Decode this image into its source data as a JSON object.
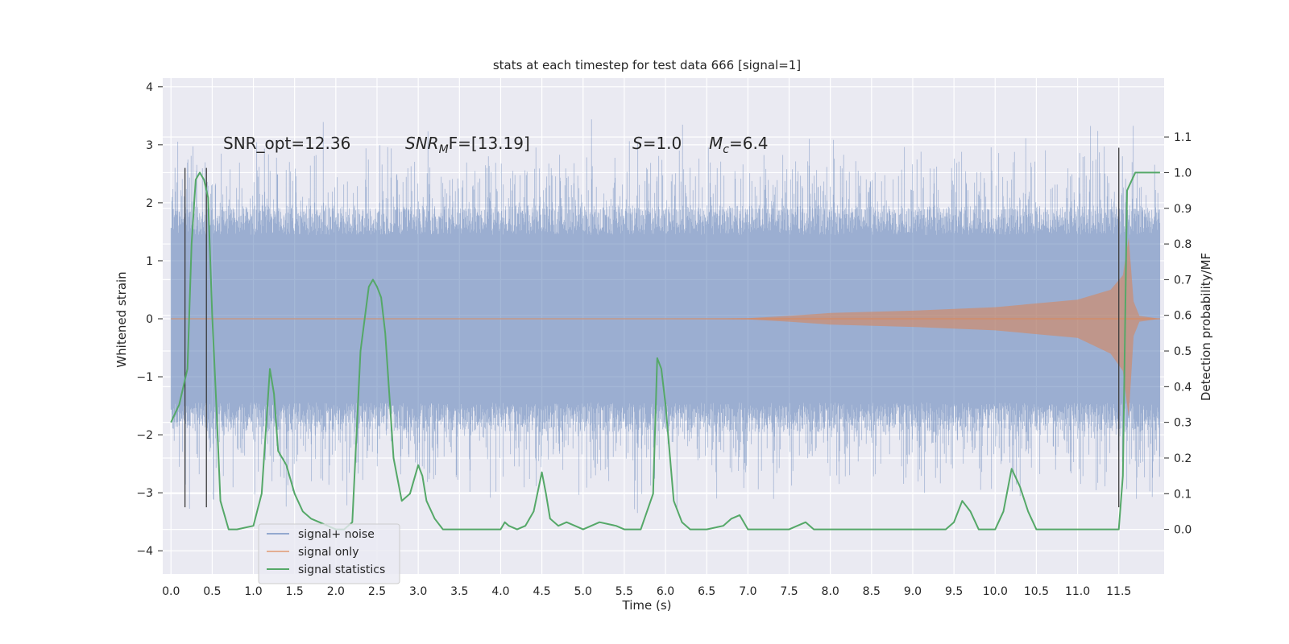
{
  "chart_data": {
    "type": "line",
    "title": "stats at each timestep for test data 666 [signal=1]",
    "xlabel": "Time (s)",
    "ylabel": "Whitened strain",
    "y2label": "Detection probability/MF",
    "xlim": [
      -0.1,
      12.05
    ],
    "ylim": [
      -4.4,
      4.15
    ],
    "y2lim": [
      -0.125,
      1.265
    ],
    "x_ticks": [
      0.0,
      0.5,
      1.0,
      1.5,
      2.0,
      2.5,
      3.0,
      3.5,
      4.0,
      4.5,
      5.0,
      5.5,
      6.0,
      6.5,
      7.0,
      7.5,
      8.0,
      8.5,
      9.0,
      9.5,
      10.0,
      10.5,
      11.0,
      11.5
    ],
    "x_tick_labels": [
      "0.0",
      "0.5",
      "1.0",
      "1.5",
      "2.0",
      "2.5",
      "3.0",
      "3.5",
      "4.0",
      "4.5",
      "5.0",
      "5.5",
      "6.0",
      "6.5",
      "7.0",
      "7.5",
      "8.0",
      "8.5",
      "9.0",
      "9.5",
      "10.0",
      "10.5",
      "11.0",
      "11.5"
    ],
    "y_ticks": [
      -4,
      -3,
      -2,
      -1,
      0,
      1,
      2,
      3,
      4
    ],
    "y_tick_labels": [
      "−4",
      "−3",
      "−2",
      "−1",
      "0",
      "1",
      "2",
      "3",
      "4"
    ],
    "y2_ticks": [
      0.0,
      0.1,
      0.2,
      0.3,
      0.4,
      0.5,
      0.6,
      0.7,
      0.8,
      0.9,
      1.0,
      1.1
    ],
    "y2_tick_labels": [
      "0.0",
      "0.1",
      "0.2",
      "0.3",
      "0.4",
      "0.5",
      "0.6",
      "0.7",
      "0.8",
      "0.9",
      "1.0",
      "1.1"
    ],
    "grid": true,
    "legend_position": "lower-left",
    "annotations": [
      {
        "text": "SNR_opt=12.36"
      },
      {
        "text": "SNR",
        "sub": "M",
        "tail": "F=[13.19]"
      },
      {
        "text": "S",
        "tail": "=1.0"
      },
      {
        "text": "M",
        "sub": "c",
        "tail": "=6.4"
      }
    ],
    "vlines": [
      {
        "x": 0.17,
        "ymin": -3.25,
        "ymax": 2.6
      },
      {
        "x": 0.43,
        "ymin": -3.25,
        "ymax": 2.6
      },
      {
        "x": 11.5,
        "ymin": -3.25,
        "ymax": 2.95
      }
    ],
    "series": [
      {
        "name": "signal+ noise",
        "color": "#4c72b0",
        "kind": "noise_band",
        "t_range": [
          0.0,
          12.0
        ],
        "core_amplitude": 1.7,
        "peak_range": [
          2.0,
          4.0
        ]
      },
      {
        "name": "signal only",
        "color": "#dd8452",
        "kind": "chirp_envelope",
        "envelope": {
          "x": [
            0.0,
            6.0,
            7.0,
            7.5,
            8.0,
            9.0,
            10.0,
            11.0,
            11.4,
            11.55,
            11.62,
            11.68,
            11.75,
            12.0
          ],
          "upper": [
            0.0,
            0.0,
            0.01,
            0.05,
            0.1,
            0.14,
            0.2,
            0.33,
            0.5,
            0.75,
            1.4,
            0.3,
            0.05,
            0.0
          ],
          "lower": [
            0.0,
            0.0,
            -0.01,
            -0.05,
            -0.1,
            -0.14,
            -0.2,
            -0.33,
            -0.6,
            -0.9,
            -1.7,
            -0.3,
            -0.05,
            0.0
          ]
        }
      },
      {
        "name": "signal statistics",
        "color": "#55a868",
        "axis": "right",
        "x": [
          0.0,
          0.1,
          0.2,
          0.25,
          0.3,
          0.35,
          0.4,
          0.45,
          0.5,
          0.55,
          0.6,
          0.7,
          0.8,
          1.0,
          1.1,
          1.2,
          1.25,
          1.3,
          1.4,
          1.5,
          1.6,
          1.7,
          1.8,
          2.0,
          2.1,
          2.2,
          2.3,
          2.4,
          2.45,
          2.5,
          2.55,
          2.6,
          2.7,
          2.8,
          2.9,
          3.0,
          3.05,
          3.1,
          3.2,
          3.3,
          3.4,
          3.6,
          4.0,
          4.05,
          4.1,
          4.2,
          4.3,
          4.4,
          4.5,
          4.55,
          4.6,
          4.7,
          4.8,
          5.0,
          5.2,
          5.4,
          5.5,
          5.6,
          5.7,
          5.85,
          5.9,
          5.95,
          6.0,
          6.1,
          6.2,
          6.3,
          6.5,
          6.7,
          6.8,
          6.9,
          7.0,
          7.2,
          7.5,
          7.7,
          7.8,
          8.0,
          8.5,
          9.0,
          9.4,
          9.5,
          9.6,
          9.7,
          9.8,
          10.0,
          10.1,
          10.2,
          10.3,
          10.4,
          10.5,
          10.7,
          11.0,
          11.3,
          11.45,
          11.5,
          11.55,
          11.6,
          11.7,
          12.0
        ],
        "values": [
          0.3,
          0.35,
          0.45,
          0.8,
          0.98,
          1.0,
          0.98,
          0.93,
          0.6,
          0.35,
          0.08,
          0.0,
          0.0,
          0.01,
          0.1,
          0.45,
          0.38,
          0.22,
          0.18,
          0.1,
          0.05,
          0.03,
          0.02,
          0.0,
          0.0,
          0.02,
          0.5,
          0.68,
          0.7,
          0.68,
          0.65,
          0.55,
          0.2,
          0.08,
          0.1,
          0.18,
          0.15,
          0.08,
          0.03,
          0.0,
          0.0,
          0.0,
          0.0,
          0.02,
          0.01,
          0.0,
          0.01,
          0.05,
          0.16,
          0.1,
          0.03,
          0.01,
          0.02,
          0.0,
          0.02,
          0.01,
          0.0,
          0.0,
          0.0,
          0.1,
          0.48,
          0.45,
          0.35,
          0.08,
          0.02,
          0.0,
          0.0,
          0.01,
          0.03,
          0.04,
          0.0,
          0.0,
          0.0,
          0.02,
          0.0,
          0.0,
          0.0,
          0.0,
          0.0,
          0.02,
          0.08,
          0.05,
          0.0,
          0.0,
          0.05,
          0.17,
          0.12,
          0.05,
          0.0,
          0.0,
          0.0,
          0.0,
          0.0,
          0.0,
          0.15,
          0.95,
          1.0,
          1.0
        ]
      }
    ]
  }
}
